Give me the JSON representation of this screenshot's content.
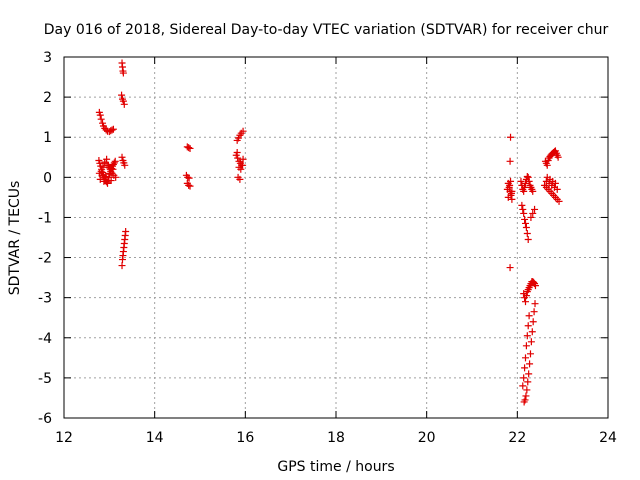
{
  "chart_data": {
    "type": "scatter",
    "title": "Day 016 of 2018, Sidereal Day-to-day VTEC variation (SDTVAR) for receiver chur",
    "xlabel": "GPS time / hours",
    "ylabel": "SDTVAR / TECUs",
    "xlim": [
      12,
      24
    ],
    "ylim": [
      -6,
      3
    ],
    "xticks": [
      12,
      14,
      16,
      18,
      20,
      22,
      24
    ],
    "yticks": [
      -6,
      -5,
      -4,
      -3,
      -2,
      -1,
      0,
      1,
      2,
      3
    ],
    "xtick_labels": [
      "12",
      "14",
      "16",
      "18",
      "20",
      "22",
      "24"
    ],
    "ytick_labels": [
      "-6",
      "-5",
      "-4",
      "-3",
      "-2",
      "-1",
      "0",
      "1",
      "2",
      "3"
    ],
    "grid": true,
    "marker": "+",
    "color": "#e00000",
    "series": [
      {
        "name": "SDTVAR",
        "x": [
          12.78,
          12.8,
          12.82,
          12.85,
          12.87,
          12.9,
          12.93,
          12.96,
          13.0,
          13.03,
          13.06,
          13.09,
          12.77,
          12.79,
          12.81,
          12.83,
          12.85,
          12.87,
          12.89,
          12.91,
          12.93,
          12.95,
          12.97,
          12.99,
          13.01,
          13.03,
          13.05,
          13.07,
          13.09,
          13.11,
          13.13,
          12.78,
          12.82,
          12.86,
          12.9,
          12.94,
          12.98,
          13.02,
          13.06,
          13.1,
          13.14,
          12.8,
          12.84,
          12.88,
          12.92,
          12.96,
          13.0,
          13.04,
          13.08,
          12.9,
          12.95,
          13.0,
          13.28,
          13.29,
          13.3,
          13.31,
          13.27,
          13.29,
          13.31,
          13.33,
          13.28,
          13.3,
          13.32,
          13.34,
          13.36,
          13.35,
          13.34,
          13.33,
          13.32,
          13.31,
          13.3,
          13.29,
          13.28,
          14.72,
          14.75,
          14.78,
          14.7,
          14.73,
          14.76,
          14.72,
          14.75,
          14.78,
          15.82,
          15.85,
          15.88,
          15.91,
          15.95,
          15.8,
          15.83,
          15.86,
          15.89,
          15.92,
          15.95,
          15.82,
          15.86,
          15.9,
          15.94,
          15.84,
          15.88,
          21.8,
          21.82,
          21.84,
          21.86,
          21.88,
          21.78,
          21.83,
          21.87,
          21.8,
          21.85,
          21.88,
          21.85,
          21.84,
          21.84,
          22.08,
          22.1,
          22.12,
          22.14,
          22.16,
          22.18,
          22.2,
          22.22,
          22.24,
          22.26,
          22.28,
          22.3,
          22.32,
          22.34,
          22.1,
          22.12,
          22.14,
          22.16,
          22.18,
          22.2,
          22.22,
          22.24,
          22.14,
          22.16,
          22.18,
          22.2,
          22.22,
          22.24,
          22.26,
          22.28,
          22.3,
          22.32,
          22.34,
          22.36,
          22.38,
          22.4,
          22.15,
          22.17,
          22.19,
          22.21,
          22.23,
          22.25,
          22.27,
          22.29,
          22.31,
          22.33,
          22.35,
          22.37,
          22.39,
          22.12,
          22.14,
          22.16,
          22.18,
          22.2,
          22.22,
          22.24,
          22.26,
          22.3,
          22.34,
          22.38,
          22.62,
          22.64,
          22.66,
          22.68,
          22.7,
          22.72,
          22.74,
          22.76,
          22.78,
          22.8,
          22.82,
          22.84,
          22.86,
          22.88,
          22.9,
          22.6,
          22.64,
          22.68,
          22.72,
          22.76,
          22.8,
          22.84,
          22.88,
          22.92,
          22.64,
          22.7,
          22.76,
          22.82,
          22.88,
          22.66,
          22.72,
          22.78,
          22.84
        ],
        "y": [
          1.62,
          1.55,
          1.45,
          1.35,
          1.28,
          1.22,
          1.18,
          1.15,
          1.14,
          1.16,
          1.18,
          1.2,
          0.42,
          0.35,
          0.28,
          0.2,
          0.12,
          0.05,
          0.0,
          -0.05,
          -0.1,
          -0.12,
          -0.08,
          0.0,
          0.08,
          0.15,
          0.22,
          0.28,
          0.32,
          0.36,
          0.4,
          0.1,
          0.15,
          0.25,
          0.35,
          0.45,
          0.3,
          0.2,
          0.1,
          0.05,
          0.0,
          -0.05,
          0.05,
          -0.1,
          0.02,
          -0.15,
          0.1,
          -0.08,
          0.2,
          0.38,
          0.3,
          0.25,
          2.85,
          2.75,
          2.65,
          2.6,
          2.05,
          1.95,
          1.9,
          1.82,
          0.5,
          0.42,
          0.36,
          0.3,
          -1.35,
          -1.45,
          -1.55,
          -1.65,
          -1.75,
          -1.85,
          -1.95,
          -2.05,
          -2.2,
          0.76,
          0.74,
          0.72,
          0.05,
          0.0,
          -0.02,
          -0.15,
          -0.2,
          -0.22,
          0.92,
          0.98,
          1.05,
          1.1,
          1.15,
          0.55,
          0.48,
          0.4,
          0.35,
          0.3,
          0.45,
          0.62,
          0.25,
          0.2,
          0.3,
          0.0,
          -0.05,
          -0.15,
          -0.25,
          -0.35,
          -0.45,
          -0.55,
          -0.3,
          -0.2,
          -0.4,
          -0.5,
          -0.1,
          -0.35,
          1.0,
          0.4,
          -2.25,
          -0.1,
          -0.2,
          -0.3,
          -0.35,
          -0.25,
          -0.15,
          -0.05,
          0.02,
          0.0,
          -0.1,
          -0.2,
          -0.25,
          -0.3,
          -0.35,
          -0.7,
          -0.8,
          -0.9,
          -1.05,
          -1.15,
          -1.25,
          -1.4,
          -1.55,
          -2.9,
          -3.0,
          -3.1,
          -2.95,
          -2.85,
          -2.8,
          -2.75,
          -2.7,
          -2.65,
          -2.6,
          -2.6,
          -2.62,
          -2.65,
          -2.7,
          -5.6,
          -5.55,
          -5.45,
          -5.3,
          -5.1,
          -4.9,
          -4.65,
          -4.4,
          -4.1,
          -3.85,
          -3.6,
          -3.35,
          -3.15,
          -5.2,
          -5.0,
          -4.75,
          -4.5,
          -4.2,
          -3.95,
          -3.7,
          -3.45,
          -1.0,
          -0.9,
          -0.8,
          0.4,
          0.35,
          0.3,
          0.42,
          0.48,
          0.52,
          0.55,
          0.58,
          0.6,
          0.62,
          0.64,
          0.66,
          0.6,
          0.55,
          0.5,
          -0.2,
          -0.25,
          -0.3,
          -0.35,
          -0.4,
          -0.45,
          -0.5,
          -0.55,
          -0.6,
          -0.1,
          -0.15,
          -0.2,
          -0.25,
          -0.3,
          0.0,
          -0.05,
          -0.1,
          -0.15
        ]
      }
    ]
  }
}
